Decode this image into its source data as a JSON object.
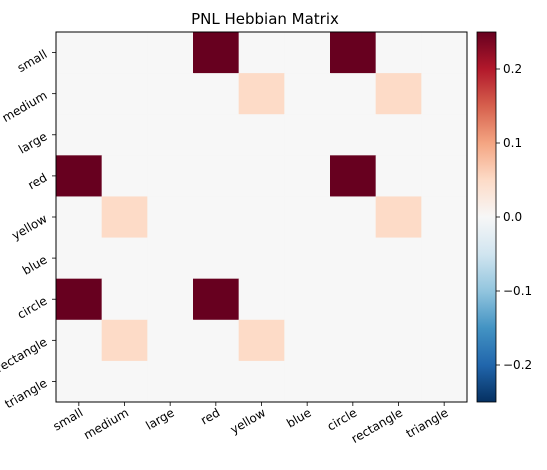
{
  "chart_data": {
    "type": "heatmap",
    "title": "PNL Hebbian Matrix",
    "x_categories": [
      "small",
      "medium",
      "large",
      "red",
      "yellow",
      "blue",
      "circle",
      "rectangle",
      "triangle"
    ],
    "y_categories": [
      "small",
      "medium",
      "large",
      "red",
      "yellow",
      "blue",
      "circle",
      "rectangle",
      "triangle"
    ],
    "values": [
      [
        0,
        0,
        0,
        0.25,
        0,
        0,
        0.25,
        0,
        0
      ],
      [
        0,
        0,
        0,
        0,
        0.05,
        0,
        0,
        0.05,
        0
      ],
      [
        0,
        0,
        0,
        0,
        0,
        0,
        0,
        0,
        0
      ],
      [
        0.25,
        0,
        0,
        0,
        0,
        0,
        0.25,
        0,
        0
      ],
      [
        0,
        0.05,
        0,
        0,
        0,
        0,
        0,
        0.05,
        0
      ],
      [
        0,
        0,
        0,
        0,
        0,
        0,
        0,
        0,
        0
      ],
      [
        0.25,
        0,
        0,
        0.25,
        0,
        0,
        0,
        0,
        0
      ],
      [
        0,
        0.05,
        0,
        0,
        0.05,
        0,
        0,
        0,
        0
      ],
      [
        0,
        0,
        0,
        0,
        0,
        0,
        0,
        0,
        0
      ]
    ],
    "colormap": "RdBu_r",
    "vmin": -0.25,
    "vmax": 0.25,
    "colorbar_ticks": [
      0.2,
      0.1,
      0.0,
      -0.1,
      -0.2
    ],
    "colorbar_tick_labels": [
      "0.2",
      "0.1",
      "0.0",
      "−0.1",
      "−0.2"
    ],
    "grid": false,
    "x_tick_rotation": 30,
    "y_tick_rotation": 30
  }
}
